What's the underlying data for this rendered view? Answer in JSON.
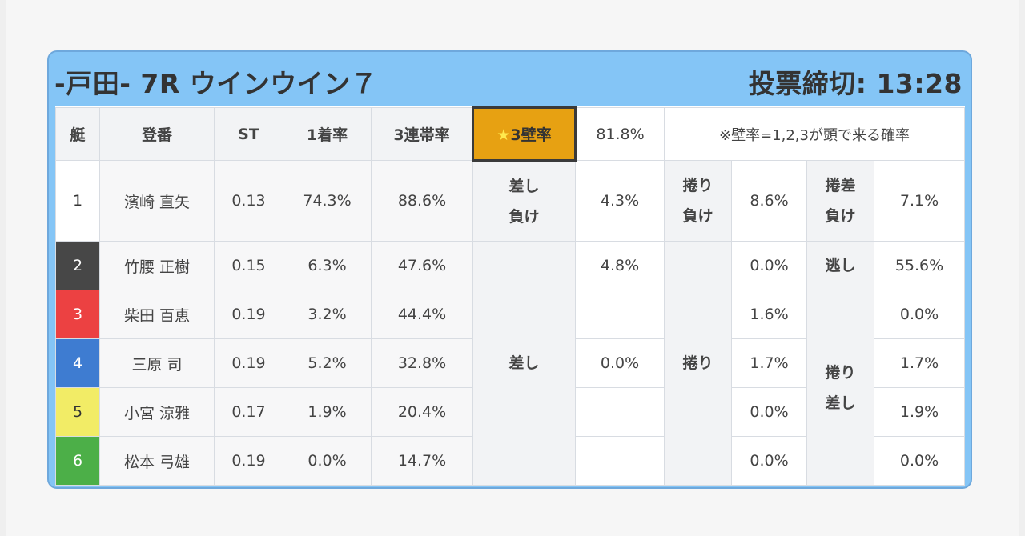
{
  "header": {
    "title": "-戸田- 7R ウインウイン７",
    "deadline": "投票締切: 13:28"
  },
  "table": {
    "columns": [
      "艇",
      "登番",
      "ST",
      "1着率",
      "3連帯率"
    ],
    "kabe": {
      "label": "3壁率",
      "value": "81.8%",
      "note": "※壁率=1,2,3が頭で来る確率"
    },
    "rows": [
      {
        "waku": "1",
        "name": "濱崎 直矢",
        "st": "0.13",
        "win": "74.3%",
        "top3": "88.6%",
        "color": "#ffffff",
        "text": "#333333"
      },
      {
        "waku": "2",
        "name": "竹腰 正樹",
        "st": "0.15",
        "win": "6.3%",
        "top3": "47.6%",
        "color": "#474747",
        "text": "#ffffff"
      },
      {
        "waku": "3",
        "name": "柴田 百恵",
        "st": "0.19",
        "win": "3.2%",
        "top3": "44.4%",
        "color": "#ec4142",
        "text": "#ffffff"
      },
      {
        "waku": "4",
        "name": "三原 司",
        "st": "0.19",
        "win": "5.2%",
        "top3": "32.8%",
        "color": "#3e7cd1",
        "text": "#ffffff"
      },
      {
        "waku": "5",
        "name": "小宮 涼雅",
        "st": "0.17",
        "win": "1.9%",
        "top3": "20.4%",
        "color": "#f2ec66",
        "text": "#333333"
      },
      {
        "waku": "6",
        "name": "松本 弓雄",
        "st": "0.19",
        "win": "0.0%",
        "top3": "14.7%",
        "color": "#4caf48",
        "text": "#ffffff"
      }
    ],
    "sashi_make": {
      "label_line1": "差し",
      "label_line2": "負け",
      "value": "4.3%"
    },
    "makuri_make": {
      "label_line1": "捲り",
      "label_line2": "負け",
      "value": "8.6%"
    },
    "makurizashi_make": {
      "label_line1": "捲差",
      "label_line2": "負け",
      "value": "7.1%"
    },
    "nige": {
      "label": "逃し",
      "value": "55.6%"
    },
    "sashi": {
      "label": "差し",
      "values": [
        "4.8%",
        "",
        "0.0%",
        "",
        ""
      ]
    },
    "makuri": {
      "label": "捲り",
      "values": [
        "0.0%",
        "1.6%",
        "1.7%",
        "0.0%",
        "0.0%"
      ]
    },
    "makurizashi": {
      "label_line1": "捲り",
      "label_line2": "差し",
      "values": [
        "0.0%",
        "1.7%",
        "1.9%",
        "0.0%"
      ]
    }
  }
}
